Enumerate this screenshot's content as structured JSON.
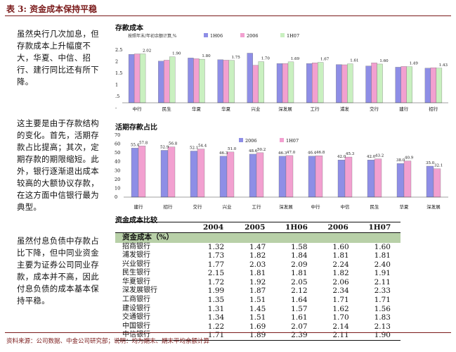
{
  "page": {
    "title": "表 3: 资金成本保持平稳",
    "footer": "资料来源：公司数据、中金公司研究部；说明：均为期末、期末平均余额计算"
  },
  "paragraphs": [
    "虽然央行几次加息，但存款成本上升幅度不大，华夏、中信、招行、建行同比还有所下降。",
    "这主要是由于存款结构的变化。首先，活期存款占比提高；其次，定期存款的期限缩短。此外，银行逐渐退出成本较高的大额协议存款，在这方面中信银行最为典型。",
    "虽然付息负债中存款占比下降，但中同业资金主要为证券公司同业存款，成本并不高，因此付息负债的成本基本保持平稳。"
  ],
  "colors": {
    "s1": "#8e8ee6",
    "s2": "#f2a0d0",
    "s3": "#c9f0c0",
    "header_band": "#b8d0a8",
    "accent": "#7a1a1a"
  },
  "chart_data": [
    {
      "type": "bar",
      "title": "存款成本",
      "note": "按照年末/年初余额计算,%",
      "ylabels": [
        "2.5",
        "2",
        "1.5",
        "1",
        ".5",
        "-"
      ],
      "categories": [
        "中行",
        "民生",
        "华夏",
        "华夏",
        "兴业",
        "深发展",
        "工行",
        "浦发",
        "交行",
        "建行",
        "招行"
      ],
      "series": [
        {
          "name": "1H06",
          "values": [
            2.0,
            1.72,
            1.85,
            1.78,
            2.05,
            1.62,
            1.62,
            1.58,
            1.52,
            1.47,
            1.43
          ]
        },
        {
          "name": "2006",
          "values": [
            2.02,
            1.76,
            1.82,
            1.76,
            1.55,
            1.62,
            1.65,
            1.57,
            1.65,
            1.5,
            1.45
          ]
        },
        {
          "name": "1H07",
          "values": [
            2.02,
            1.9,
            1.8,
            1.75,
            1.7,
            1.69,
            1.67,
            1.61,
            1.6,
            1.49,
            1.43
          ]
        }
      ],
      "data_labels": [
        {
          "text": "2.02",
          "category": 0,
          "series": 2
        },
        {
          "text": "1.90",
          "category": 1,
          "series": 2
        },
        {
          "text": "1.80",
          "category": 2,
          "series": 2
        },
        {
          "text": "1.75",
          "category": 3,
          "series": 2
        },
        {
          "text": "1.70",
          "category": 4,
          "series": 2
        },
        {
          "text": "1.69",
          "category": 5,
          "series": 2
        },
        {
          "text": "1.67",
          "category": 6,
          "series": 2
        },
        {
          "text": "1.61",
          "category": 7,
          "series": 2
        },
        {
          "text": "1.60",
          "category": 8,
          "series": 2
        },
        {
          "text": "1.49",
          "category": 9,
          "series": 2
        },
        {
          "text": "1.43",
          "category": 10,
          "series": 2
        }
      ],
      "ylim": [
        0,
        2.5
      ],
      "legend_position": "top"
    },
    {
      "type": "bar",
      "title": "活期存款占比",
      "ylabels": [
        "70",
        "60",
        "50",
        "40",
        "30",
        "20",
        "10",
        "0"
      ],
      "categories": [
        "建行",
        "招行",
        "交行",
        "兴业",
        "工行",
        "深发展",
        "中行",
        "中信",
        "民生",
        "华夏",
        "深发展"
      ],
      "series": [
        {
          "name": "2006",
          "values": [
            55.4,
            52.9,
            52.1,
            46.3,
            48.6,
            46.3,
            46.4,
            42.0,
            42.0,
            38.0,
            35.0
          ]
        },
        {
          "name": "1H07",
          "values": [
            57.8,
            56.8,
            54.4,
            51.0,
            50.2,
            47.0,
            46.8,
            45.3,
            43.2,
            40.9,
            32.1
          ]
        }
      ],
      "data_labels_s1": [
        "55.4",
        "52.9",
        "52.1",
        "46.3",
        "48.6",
        "46.3",
        "46.4",
        "42.0",
        "42.0",
        "38.0",
        "35.0"
      ],
      "data_labels_s2": [
        "57.8",
        "56.8",
        "54.4",
        "51.0",
        "50.2",
        "47.0",
        "46.8",
        "45.3",
        "43.2",
        "40.9",
        "32.1"
      ],
      "ylim": [
        0,
        70
      ],
      "legend_position": "top"
    }
  ],
  "table": {
    "title": "资金成本比较",
    "headers": [
      "",
      "2004",
      "2005",
      "1H06",
      "2006",
      "1H07"
    ],
    "section_label": "资金成本（%）",
    "rows": [
      {
        "name": "招商银行",
        "values": [
          "1.32",
          "1.47",
          "1.58",
          "1.60",
          "1.60"
        ]
      },
      {
        "name": "浦发银行",
        "values": [
          "1.73",
          "1.82",
          "1.84",
          "1.81",
          "1.81"
        ]
      },
      {
        "name": "兴业银行",
        "values": [
          "1.77",
          "2.03",
          "2.09",
          "2.24",
          "2.40"
        ]
      },
      {
        "name": "民生银行",
        "values": [
          "2.15",
          "1.81",
          "1.81",
          "1.82",
          "1.91"
        ]
      },
      {
        "name": "华夏银行",
        "values": [
          "1.72",
          "1.92",
          "2.05",
          "2.06",
          "2.11"
        ]
      },
      {
        "name": "深发展银行",
        "values": [
          "1.99",
          "1.87",
          "2.12",
          "2.34",
          "2.33"
        ]
      },
      {
        "name": "工商银行",
        "values": [
          "1.35",
          "1.51",
          "1.64",
          "1.71",
          "1.71"
        ]
      },
      {
        "name": "建设银行",
        "values": [
          "1.31",
          "1.45",
          "1.57",
          "1.62",
          "1.56"
        ]
      },
      {
        "name": "交通银行",
        "values": [
          "1.34",
          "1.51",
          "1.61",
          "1.70",
          "1.83"
        ]
      },
      {
        "name": "中国银行",
        "values": [
          "1.22",
          "1.69",
          "2.07",
          "2.14",
          "2.13"
        ]
      },
      {
        "name": "中信银行",
        "values": [
          "1.71",
          "1.89",
          "2.39",
          "2.11",
          "1.90"
        ]
      }
    ]
  }
}
